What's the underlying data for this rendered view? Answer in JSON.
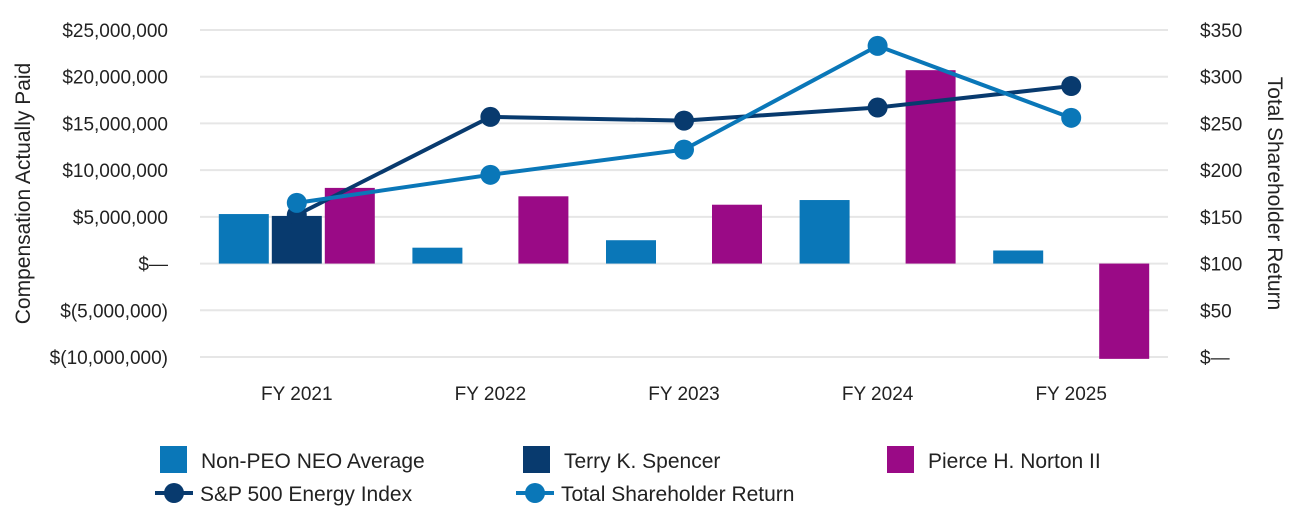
{
  "chart_data": {
    "type": "bar",
    "categories": [
      "FY 2021",
      "FY 2022",
      "FY 2023",
      "FY 2024",
      "FY 2025"
    ],
    "left_axis": {
      "title": "Compensation Actually Paid",
      "ylim": [
        -10000000,
        25000000
      ],
      "ticks": [
        25000000,
        20000000,
        15000000,
        10000000,
        5000000,
        0,
        -5000000,
        -10000000
      ],
      "tick_labels": [
        "$25,000,000",
        "$20,000,000",
        "$15,000,000",
        "$10,000,000",
        "$5,000,000",
        "$—",
        "$(5,000,000)",
        "$(10,000,000)"
      ]
    },
    "right_axis": {
      "title": "Total Shareholder Return",
      "ylim": [
        0,
        350
      ],
      "ticks": [
        350,
        300,
        250,
        200,
        150,
        100,
        50,
        0
      ],
      "tick_labels": [
        "$350",
        "$300",
        "$250",
        "$200",
        "$150",
        "$100",
        "$50",
        "$—"
      ]
    },
    "bar_series": [
      {
        "name": "Non-PEO NEO Average",
        "color": "#0a77b8",
        "values": [
          5300000,
          1700000,
          2500000,
          6800000,
          1400000
        ]
      },
      {
        "name": "Terry K. Spencer",
        "color": "#083a6e",
        "values": [
          5100000,
          null,
          null,
          null,
          null
        ]
      },
      {
        "name": "Pierce H. Norton II",
        "color": "#9a0a86",
        "values": [
          8100000,
          7200000,
          6300000,
          20700000,
          -10200000
        ]
      }
    ],
    "line_series": [
      {
        "name": "S&P 500 Energy Index",
        "color": "#083a6e",
        "axis": "right",
        "values": [
          152,
          257,
          253,
          267,
          290
        ]
      },
      {
        "name": "Total Shareholder Return",
        "color": "#0a77b8",
        "axis": "right",
        "values": [
          165,
          195,
          222,
          333,
          256
        ]
      }
    ],
    "grid": true,
    "legend_position": "bottom"
  }
}
